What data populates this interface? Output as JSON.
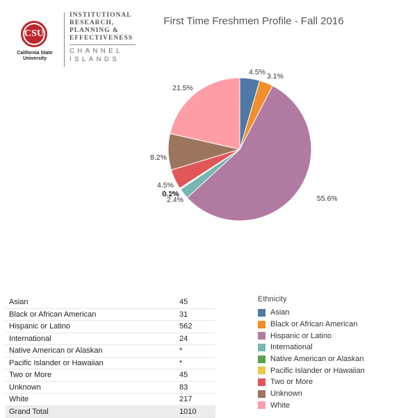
{
  "logo": {
    "seal_text": "CSU",
    "university_lines": [
      "California State",
      "University"
    ],
    "department_lines": [
      "INSTITUTIONAL",
      "RESEARCH,",
      "PLANNING &",
      "EFFECTIVENESS"
    ],
    "campus_lines": [
      "CHANNEL",
      "ISLANDS"
    ]
  },
  "chart_data": {
    "type": "pie",
    "title": "First Time Freshmen Profile - Fall 2016",
    "legend_title": "Ethnicity",
    "legend_position": "bottom-right",
    "slices": [
      {
        "name": "Asian",
        "value": 4.5,
        "label": "4.5%",
        "color": "#4e79a7"
      },
      {
        "name": "Black or African American",
        "value": 3.1,
        "label": "3.1%",
        "color": "#f28e2b"
      },
      {
        "name": "Hispanic or Latino",
        "value": 55.6,
        "label": "55.6%",
        "color": "#b07aa1"
      },
      {
        "name": "International",
        "value": 2.4,
        "label": "2.4%",
        "color": "#76b7b2"
      },
      {
        "name": "Native American or Alaskan",
        "value": 0.1,
        "label": "0.1%",
        "color": "#59a14f"
      },
      {
        "name": "Pacific Islander or Hawaiian",
        "value": 0.2,
        "label": "0.2%",
        "color": "#edc948"
      },
      {
        "name": "Two or More",
        "value": 4.5,
        "label": "4.5%",
        "color": "#e15759"
      },
      {
        "name": "Unknown",
        "value": 8.2,
        "label": "8.2%",
        "color": "#9c755f"
      },
      {
        "name": "White",
        "value": 21.5,
        "label": "21.5%",
        "color": "#ff9da7"
      }
    ],
    "table": {
      "rows": [
        {
          "label": "Asian",
          "value": "45"
        },
        {
          "label": "Black or African American",
          "value": "31"
        },
        {
          "label": "Hispanic or Latino",
          "value": "562"
        },
        {
          "label": "International",
          "value": "24"
        },
        {
          "label": "Native American or Alaskan",
          "value": "*"
        },
        {
          "label": "Pacific Islander or Hawaiian",
          "value": "*"
        },
        {
          "label": "Two or More",
          "value": "45"
        },
        {
          "label": "Unknown",
          "value": "83"
        },
        {
          "label": "White",
          "value": "217"
        }
      ],
      "total": {
        "label": "Grand Total",
        "value": "1010"
      }
    }
  }
}
